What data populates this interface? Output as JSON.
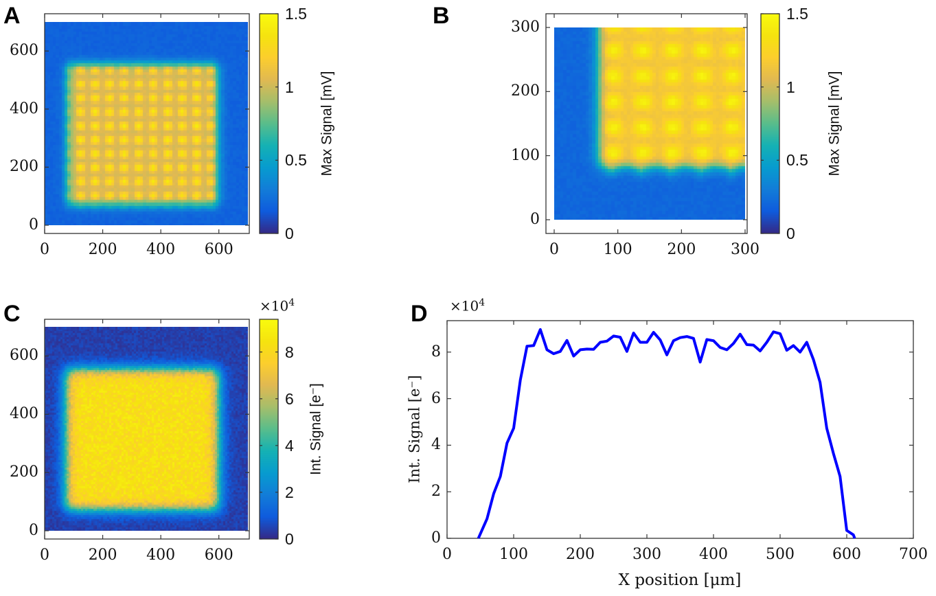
{
  "chart_data": [
    {
      "panel": "A",
      "type": "heatmap",
      "colormap": "parula",
      "xlim": [
        0,
        700
      ],
      "ylim": [
        0,
        700
      ],
      "xticks": [
        0,
        200,
        400,
        600
      ],
      "yticks": [
        0,
        200,
        400,
        600
      ],
      "colorbar": {
        "label": "Max Signal [mV]",
        "range": [
          0,
          1.5
        ],
        "ticks": [
          "0",
          "0.5",
          "1",
          "1.5"
        ]
      }
    },
    {
      "panel": "B",
      "type": "heatmap",
      "colormap": "parula",
      "xlim": [
        0,
        300
      ],
      "ylim": [
        0,
        300
      ],
      "xticks": [
        0,
        100,
        200,
        300
      ],
      "yticks": [
        0,
        100,
        200,
        300
      ],
      "colorbar": {
        "label": "Max Signal [mV]",
        "range": [
          0,
          1.5
        ],
        "ticks": [
          "0",
          "0.5",
          "1",
          "1.5"
        ]
      }
    },
    {
      "panel": "C",
      "type": "heatmap",
      "colormap": "parula",
      "xlim": [
        0,
        700
      ],
      "ylim": [
        0,
        700
      ],
      "xticks": [
        0,
        200,
        400,
        600
      ],
      "yticks": [
        0,
        200,
        400,
        600
      ],
      "colorbar": {
        "label": "Int. Signal [e⁻]",
        "range": [
          0,
          9.4
        ],
        "ticks": [
          "0",
          "2",
          "4",
          "6",
          "8"
        ],
        "multiplier": {
          "base": "×10",
          "exp": "4"
        }
      }
    },
    {
      "panel": "D",
      "type": "line",
      "xlabel": "X position [μm]",
      "ylabel": "Int. Signal [e⁻]",
      "multiplier": {
        "base": "×10",
        "exp": "4"
      },
      "xlim": [
        0,
        700
      ],
      "ylim": [
        0,
        9.35
      ],
      "xticks": [
        0,
        100,
        200,
        300,
        400,
        500,
        600,
        700
      ],
      "yticks": [
        0,
        2,
        4,
        6,
        8
      ],
      "color": "#0000ff",
      "x": [
        47,
        60,
        70,
        80,
        90,
        100,
        110,
        120,
        130,
        140,
        150,
        160,
        170,
        180,
        190,
        200,
        210,
        220,
        230,
        240,
        250,
        260,
        270,
        280,
        290,
        300,
        310,
        320,
        330,
        340,
        350,
        360,
        370,
        380,
        390,
        400,
        410,
        420,
        430,
        440,
        450,
        460,
        470,
        480,
        490,
        500,
        510,
        520,
        530,
        540,
        550,
        560,
        570,
        580,
        590,
        600,
        610,
        612
      ],
      "y": [
        0,
        0.84,
        1.92,
        2.66,
        4.09,
        4.73,
        6.8,
        8.25,
        8.28,
        8.97,
        8.1,
        7.93,
        8.03,
        8.5,
        7.83,
        8.1,
        8.13,
        8.12,
        8.42,
        8.47,
        8.69,
        8.64,
        8.03,
        8.82,
        8.42,
        8.42,
        8.85,
        8.52,
        7.88,
        8.49,
        8.62,
        8.67,
        8.59,
        7.57,
        8.54,
        8.49,
        8.2,
        8.1,
        8.37,
        8.77,
        8.32,
        8.3,
        8.05,
        8.42,
        8.87,
        8.79,
        8.08,
        8.28,
        8.0,
        8.42,
        7.68,
        6.7,
        4.73,
        3.65,
        2.66,
        0.34,
        0.15,
        0
      ]
    }
  ]
}
